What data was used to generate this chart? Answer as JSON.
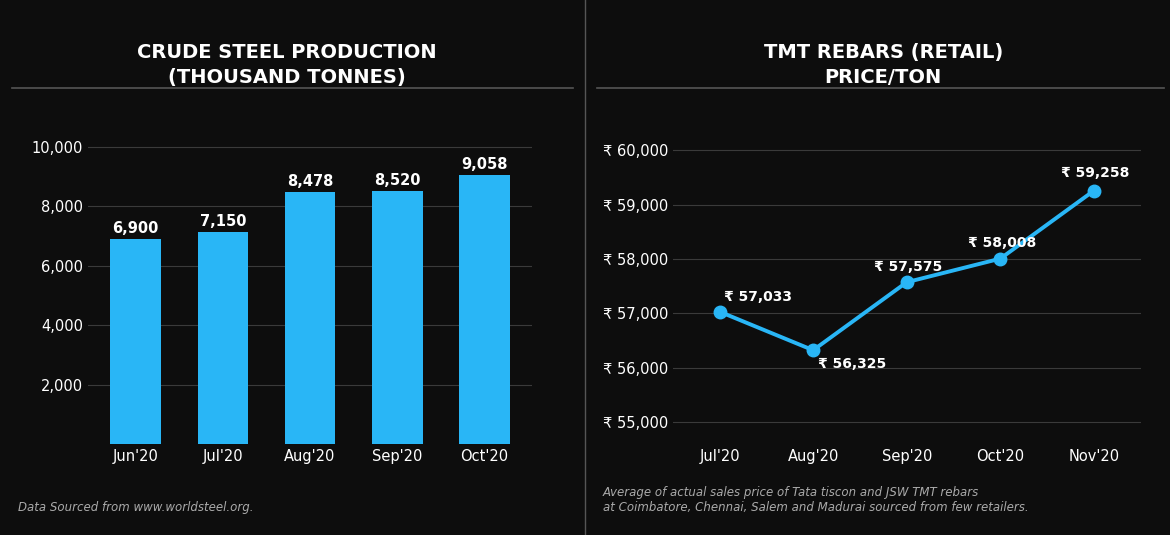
{
  "bg_color": "#0d0d0d",
  "title_color": "#ffffff",
  "text_color": "#ffffff",
  "grid_color": "#3a3a3a",
  "bar_color": "#29b6f6",
  "line_color": "#29b6f6",
  "marker_color": "#29b6f6",
  "divider_color": "#555555",
  "source_color": "#aaaaaa",
  "bar_title": "CRUDE STEEL PRODUCTION\n(THOUSAND TONNES)",
  "bar_categories": [
    "Jun'20",
    "Jul'20",
    "Aug'20",
    "Sep'20",
    "Oct'20"
  ],
  "bar_values": [
    6900,
    7150,
    8478,
    8520,
    9058
  ],
  "bar_labels": [
    "6,900",
    "7,150",
    "8,478",
    "8,520",
    "9,058"
  ],
  "bar_yticks": [
    2000,
    4000,
    6000,
    8000,
    10000
  ],
  "bar_ytick_labels": [
    "2,000",
    "4,000",
    "6,000",
    "8,000",
    "10,000"
  ],
  "bar_ylim": [
    0,
    10800
  ],
  "bar_source": "Data Sourced from www.worldsteel.org.",
  "line_title": "TMT REBARS (RETAIL)\nPRICE/TON",
  "line_categories": [
    "Jul'20",
    "Aug'20",
    "Sep'20",
    "Oct'20",
    "Nov'20"
  ],
  "line_values": [
    57033,
    56325,
    57575,
    58008,
    59258
  ],
  "line_labels": [
    "₹ 57,033",
    "₹ 56,325",
    "₹ 57,575",
    "₹ 58,008",
    "₹ 59,258"
  ],
  "line_label_ha": [
    "left",
    "left",
    "left",
    "left",
    "left"
  ],
  "line_label_dx": [
    0.05,
    0.05,
    -0.35,
    -0.35,
    -0.35
  ],
  "line_label_dy": [
    150,
    -380,
    150,
    150,
    200
  ],
  "line_yticks": [
    55000,
    56000,
    57000,
    58000,
    59000,
    60000
  ],
  "line_ytick_labels": [
    "₹ 55,000",
    "₹ 56,000",
    "₹ 57,000",
    "₹ 58,000",
    "₹ 59,000",
    "₹ 60,000"
  ],
  "line_ylim": [
    54600,
    60500
  ],
  "line_source": "Average of actual sales price of Tata tiscon and JSW TMT rebars\nat Coimbatore, Chennai, Salem and Madurai sourced from few retailers."
}
